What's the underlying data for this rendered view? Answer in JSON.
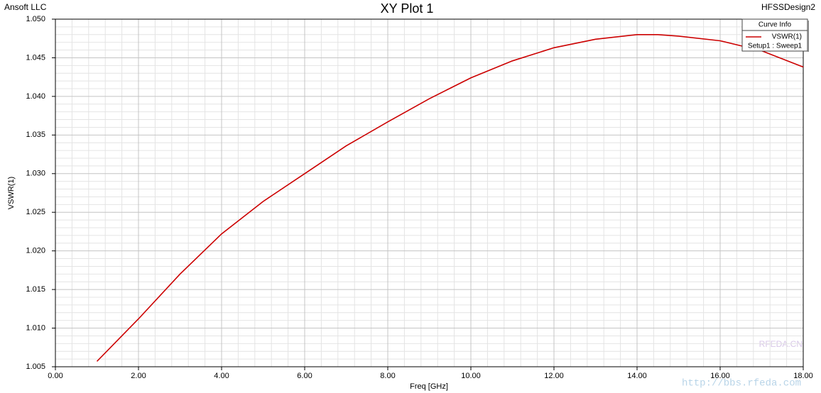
{
  "chart_data": {
    "type": "line",
    "title": "XY Plot 1",
    "company": "Ansoft LLC",
    "design": "HFSSDesign2",
    "x_label": "Freq [GHz]",
    "y_label": "VSWR(1)",
    "legend_title": "Curve Info",
    "legend": "upper right",
    "grid": true,
    "x": [
      1,
      2,
      3,
      4,
      5,
      6,
      7,
      8,
      9,
      10,
      11,
      12,
      13,
      14,
      14.5,
      15,
      16,
      17,
      18
    ],
    "series": [
      {
        "name": "VSWR(1)",
        "setup": "Setup1 : Sweep1",
        "color": "#cc0000",
        "values": [
          1.0057,
          1.0112,
          1.017,
          1.0222,
          1.0264,
          1.03,
          1.0336,
          1.0367,
          1.0397,
          1.0424,
          1.0446,
          1.0463,
          1.0474,
          1.048,
          1.048,
          1.0478,
          1.0472,
          1.0459,
          1.0438
        ]
      }
    ],
    "xlim": [
      0,
      18
    ],
    "xticks": [
      {
        "value": 0,
        "label": "0.00"
      },
      {
        "value": 2,
        "label": "2.00"
      },
      {
        "value": 4,
        "label": "4.00"
      },
      {
        "value": 6,
        "label": "6.00"
      },
      {
        "value": 8,
        "label": "8.00"
      },
      {
        "value": 10,
        "label": "10.00"
      },
      {
        "value": 12,
        "label": "12.00"
      },
      {
        "value": 14,
        "label": "14.00"
      },
      {
        "value": 16,
        "label": "16.00"
      },
      {
        "value": 18,
        "label": "18.00"
      }
    ],
    "ylim": [
      1.005,
      1.05
    ],
    "yticks": [
      1.005,
      {
        "value": 1.01,
        "label": "1.010"
      },
      1.015,
      {
        "value": 1.02,
        "label": "1.020"
      },
      1.025,
      {
        "value": 1.03,
        "label": "1.030"
      },
      1.035,
      {
        "value": 1.04,
        "label": "1.040"
      },
      1.045,
      {
        "value": 1.05,
        "label": "1.050"
      }
    ],
    "watermark": [
      "RFEDA.CN",
      "http://bbs.rfeda.com"
    ]
  }
}
